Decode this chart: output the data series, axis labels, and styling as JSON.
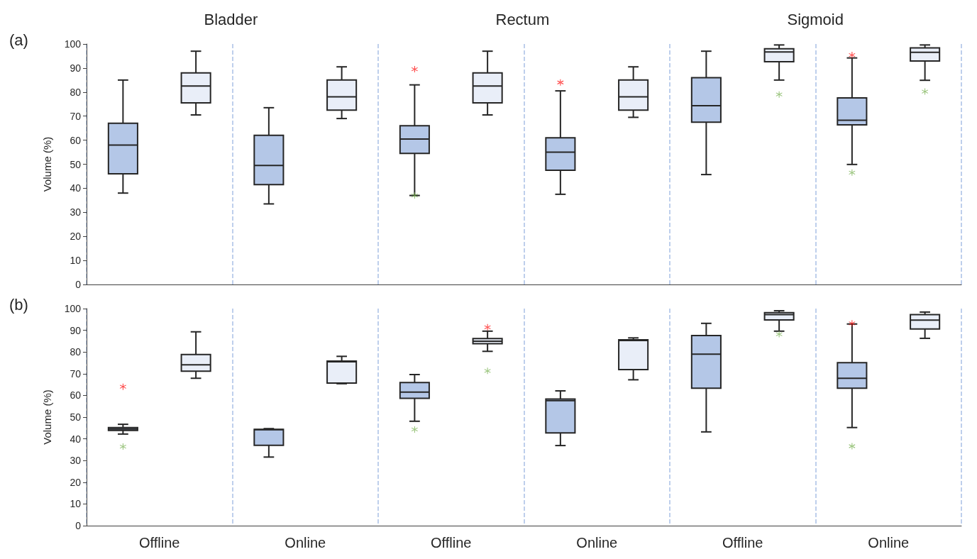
{
  "chart_data": [
    {
      "type": "box",
      "title": "(a)",
      "ylabel": "Volume (%)",
      "annotations": [
        "Bladder",
        "Rectum",
        "Sigmoid"
      ],
      "categories": [
        null,
        null,
        null,
        null,
        null,
        null
      ],
      "ylim": [
        0,
        100
      ],
      "yticks": [
        0,
        10,
        20,
        30,
        40,
        50,
        60,
        70,
        80,
        90,
        100
      ],
      "grid": "x",
      "tick_labels": "y",
      "marker": "cross",
      "series": [
        {
          "type": "box",
          "color": "#b4c7e7",
          "boxes": [
            {
              "low": 38,
              "q1": 46,
              "median": 58,
              "q3": 67,
              "high": 85
            },
            {
              "low": 33.5,
              "q1": 41.5,
              "median": 49.5,
              "q3": 62,
              "high": 73.5
            },
            {
              "low": 37,
              "q1": 54.5,
              "median": 60.5,
              "q3": 66,
              "high": 83
            },
            {
              "low": 37.5,
              "q1": 47.5,
              "median": 55,
              "q3": 61,
              "high": 80.5
            },
            {
              "low": 45.7,
              "q1": 67.5,
              "median": 74.3,
              "q3": 86,
              "high": 97
            },
            {
              "low": 49.9,
              "q1": 66.4,
              "median": 68.3,
              "q3": 77.6,
              "high": 94.2
            }
          ]
        },
        {
          "type": "scatter",
          "color": "#ff0000",
          "values": [
            null,
            null,
            89.5,
            84,
            null,
            95.4
          ]
        },
        {
          "type": "scatter",
          "color": "#70ad47",
          "values": [
            null,
            null,
            37,
            null,
            null,
            46.5
          ]
        },
        {
          "type": "box",
          "color": "#e9eef8",
          "boxes": [
            {
              "low": 70.5,
              "q1": 75.5,
              "median": 82.5,
              "q3": 88,
              "high": 97
            },
            {
              "low": 69,
              "q1": 72.5,
              "median": 78,
              "q3": 85,
              "high": 90.5
            },
            {
              "low": 70.5,
              "q1": 75.5,
              "median": 82.5,
              "q3": 88,
              "high": 97
            },
            {
              "low": 69.5,
              "q1": 72.5,
              "median": 78,
              "q3": 85,
              "high": 90.5
            },
            {
              "low": 85,
              "q1": 92.6,
              "median": 96.7,
              "q3": 98,
              "high": 99.6
            },
            {
              "low": 84.9,
              "q1": 92.9,
              "median": 96.5,
              "q3": 98.4,
              "high": 99.6
            }
          ]
        },
        {
          "type": "scatter",
          "color": "#70ad47",
          "values": [
            null,
            null,
            null,
            null,
            79,
            80.2
          ]
        }
      ]
    },
    {
      "type": "box",
      "title": "(b)",
      "ylabel": "Volume (%)",
      "categories": [
        "Offline",
        "Online",
        "Offline",
        "Online",
        "Offline",
        "Online"
      ],
      "ylim": [
        0,
        100
      ],
      "yticks": [
        0,
        10,
        20,
        30,
        40,
        50,
        60,
        70,
        80,
        90,
        100
      ],
      "grid": "x",
      "marker": "cross",
      "series": [
        {
          "type": "box",
          "color": "#b4c7e7",
          "boxes": [
            {
              "low": 42.2,
              "q1": 43.9,
              "median": 44.5,
              "q3": 45.2,
              "high": 46.7
            },
            {
              "low": 31.6,
              "q1": 37,
              "median": 44.2,
              "q3": 44.4,
              "high": 44.7
            },
            {
              "low": 48.1,
              "q1": 58.7,
              "median": 61.5,
              "q3": 65.9,
              "high": 69.6
            },
            {
              "low": 36.9,
              "q1": 42.7,
              "median": 57.6,
              "q3": 58.3,
              "high": 62.1
            },
            {
              "low": 43.2,
              "q1": 63.3,
              "median": 79,
              "q3": 87.6,
              "high": 93.2
            },
            {
              "low": 45.2,
              "q1": 63.3,
              "median": 67.9,
              "q3": 75.1,
              "high": 92.9
            }
          ]
        },
        {
          "type": "scatter",
          "color": "#ff0000",
          "values": [
            64,
            null,
            null,
            null,
            null,
            93.2
          ]
        },
        {
          "type": "scatter",
          "color": "#70ad47",
          "values": [
            36.4,
            null,
            44.3,
            null,
            null,
            36.6
          ]
        },
        {
          "type": "box",
          "color": "#e9eef8",
          "boxes": [
            {
              "low": 67.9,
              "q1": 71.2,
              "median": 74.1,
              "q3": 78.8,
              "high": 89.3
            },
            {
              "low": 65.4,
              "q1": 65.7,
              "median": 75.5,
              "q3": 75.8,
              "high": 78
            },
            {
              "low": 80.3,
              "q1": 83.8,
              "median": 85,
              "q3": 86.2,
              "high": 89.6
            },
            {
              "low": 67.2,
              "q1": 71.9,
              "median": 85.3,
              "q3": 85.6,
              "high": 86.5
            },
            {
              "low": 89.6,
              "q1": 94.8,
              "median": 97.2,
              "q3": 98.1,
              "high": 99
            },
            {
              "low": 86.3,
              "q1": 90.6,
              "median": 94.7,
              "q3": 97.2,
              "high": 98.4
            }
          ]
        },
        {
          "type": "scatter",
          "color": "#ff0000",
          "values": [
            null,
            null,
            91.4,
            null,
            null,
            null
          ]
        },
        {
          "type": "scatter",
          "color": "#70ad47",
          "values": [
            null,
            null,
            71.3,
            null,
            88.2,
            null
          ]
        }
      ]
    }
  ]
}
